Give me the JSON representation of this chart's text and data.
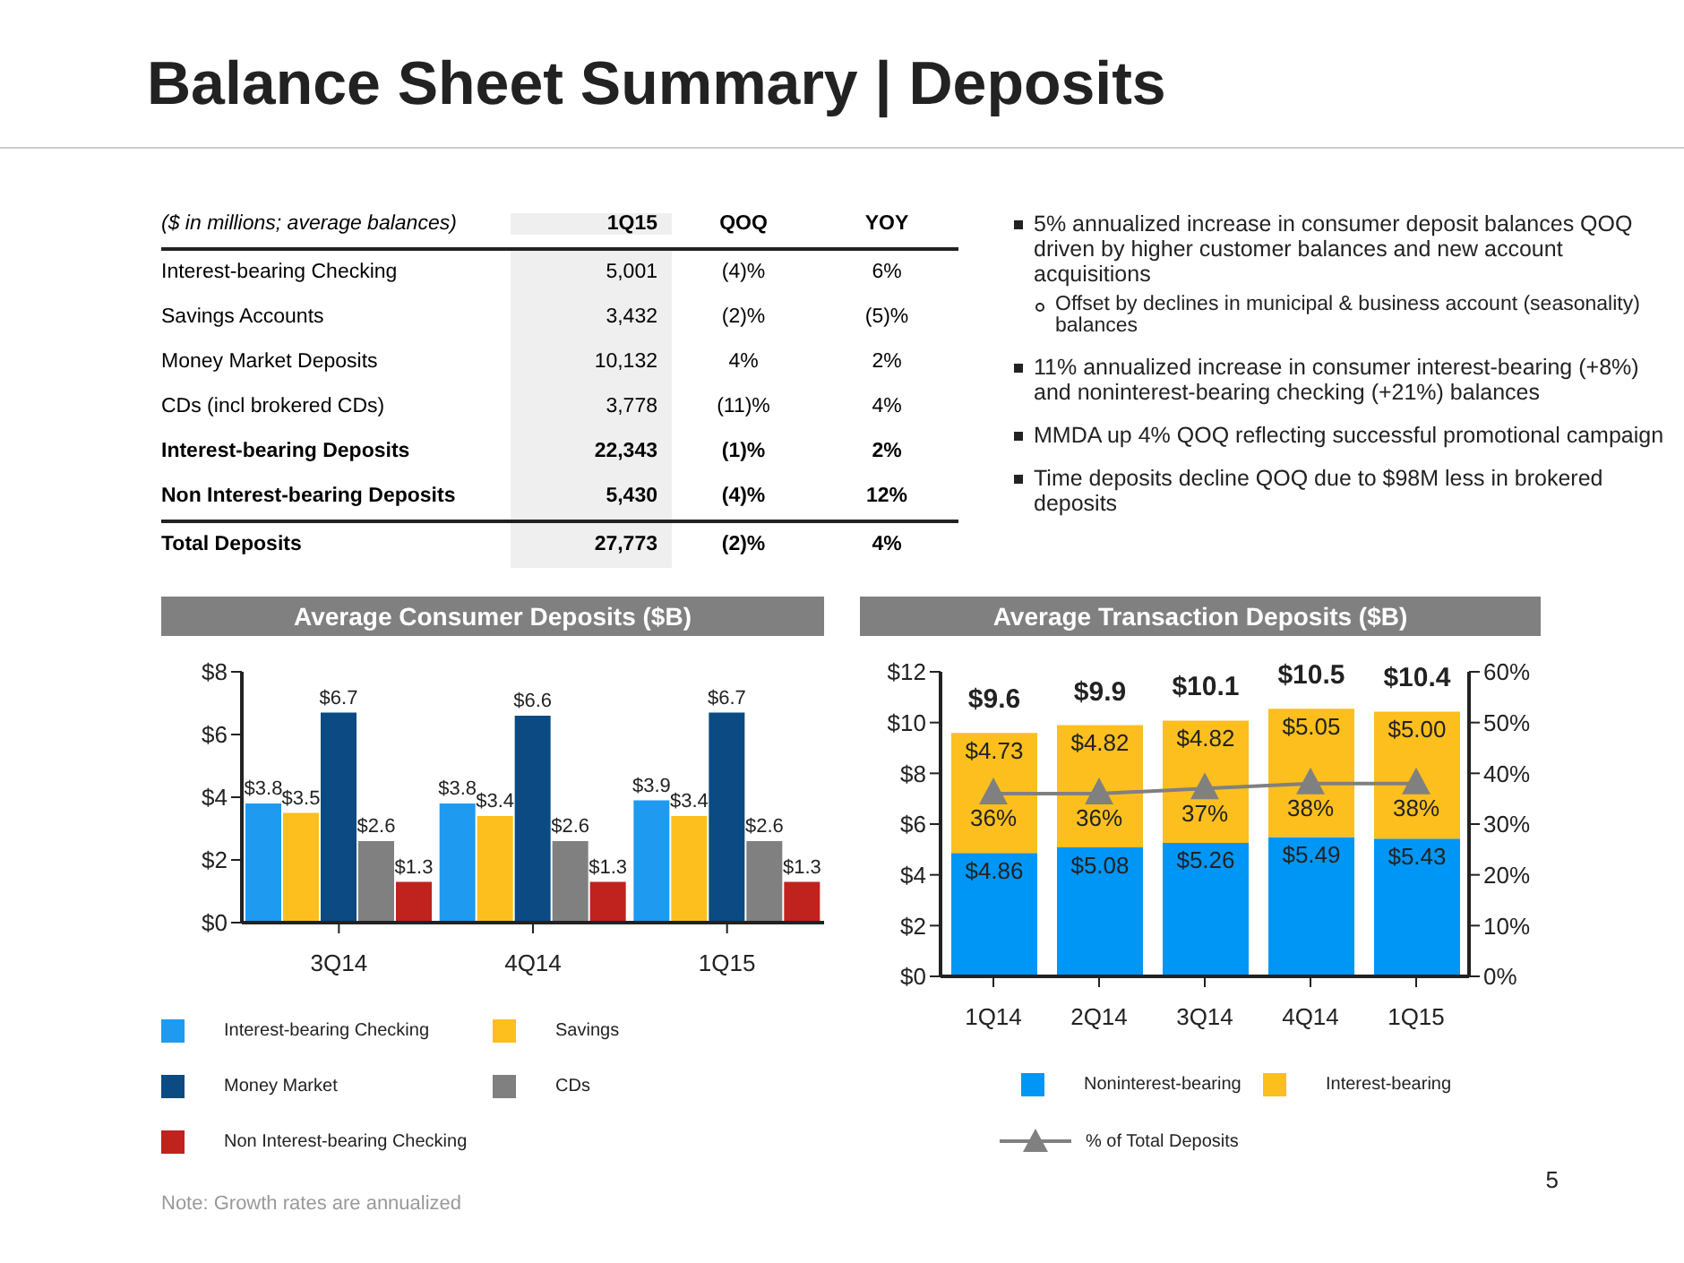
{
  "chart_data": [
    {
      "type": "other",
      "title": "Balance Sheet Summary | Deposits",
      "categories": [
        "($ in millions; average balances)",
        "1Q15",
        "QOQ",
        "YOY"
      ],
      "annotations": [
        "Interest-bearing Checking",
        "5,001",
        "(4)%",
        "6%",
        "Savings Accounts",
        "3,432",
        "(2)%",
        "(5)%",
        "Money Market Deposits",
        "10,132",
        "4%",
        "2%",
        "CDs (incl brokered CDs)",
        "3,778",
        "(11)%",
        "4%",
        "Interest-bearing Deposits",
        "22,343",
        "(1)%",
        "2%",
        "Non Interest-bearing Deposits",
        "5,430",
        "(4)%",
        "12%",
        "Total Deposits",
        "27,773",
        "(2)%",
        "4%"
      ]
    },
    {
      "type": "other",
      "annotations": [
        "5% annualized increase in consumer deposit balances QOQ driven by higher customer balances and new account acquisitions",
        "Offset by declines in municipal & business account (seasonality) balances",
        "11% annualized increase in consumer interest-bearing (+8%) and noninterest-bearing checking (+21%) balances",
        "MMDA up 4% QOQ reflecting successful promotional campaign",
        "Time deposits decline QOQ due to $98M less in brokered deposits"
      ]
    },
    {
      "type": "bar",
      "title": "Average Consumer Deposits ($B)",
      "categories": [
        "3Q14",
        "4Q14",
        "1Q15"
      ],
      "series": [
        {
          "name": "Interest-bearing Checking",
          "color": "#1e9bf0",
          "values": [
            3.8,
            3.8,
            3.9
          ],
          "value_labels": [
            "$3.8",
            "$3.8",
            "$3.9"
          ]
        },
        {
          "name": "Savings",
          "color": "#fcbf1e",
          "values": [
            3.5,
            3.4,
            3.4
          ],
          "value_labels": [
            "$3.5",
            "$3.4",
            "$3.4"
          ]
        },
        {
          "name": "Money Market",
          "color": "#0b4a82",
          "values": [
            6.7,
            6.6,
            6.7
          ],
          "value_labels": [
            "$6.7",
            "$6.6",
            "$6.7"
          ]
        },
        {
          "name": "CDs",
          "color": "#808080",
          "values": [
            2.6,
            2.6,
            2.6
          ],
          "value_labels": [
            "$2.6",
            "$2.6",
            "$2.6"
          ]
        },
        {
          "name": "Non Interest-bearing Checking",
          "color": "#c0221e",
          "values": [
            1.3,
            1.3,
            1.3
          ],
          "value_labels": [
            "$1.3",
            "$1.3",
            "$1.3"
          ]
        }
      ],
      "ylim": [
        0,
        8
      ],
      "yticks": [
        {
          "value": 0,
          "label": "$0"
        },
        {
          "value": 2,
          "label": "$2"
        },
        {
          "value": 4,
          "label": "$4"
        },
        {
          "value": 6,
          "label": "$6"
        },
        {
          "value": 8,
          "label": "$8"
        }
      ],
      "legend": "bottom",
      "annotations": [
        "Note: Growth rates are annualized"
      ]
    },
    {
      "type": "bar",
      "title": "Average Transaction Deposits ($B)",
      "categories": [
        "1Q14",
        "2Q14",
        "3Q14",
        "4Q14",
        "1Q15"
      ],
      "stacked": true,
      "series": [
        {
          "name": "Noninterest-bearing",
          "color": "#0096f5",
          "values": [
            4.86,
            5.08,
            5.26,
            5.49,
            5.43
          ],
          "value_labels": [
            "$4.86",
            "$5.08",
            "$5.26",
            "$5.49",
            "$5.43"
          ]
        },
        {
          "name": "Interest-bearing",
          "color": "#fcbf1e",
          "values": [
            4.73,
            4.82,
            4.82,
            5.05,
            5.0
          ],
          "value_labels": [
            "$4.73",
            "$4.82",
            "$4.82",
            "$5.05",
            "$5.00"
          ]
        },
        {
          "name": "% of Total Deposits",
          "type": "line",
          "axis": "y2",
          "marker": "triangle",
          "color": "#808080",
          "values": [
            36,
            36,
            37,
            38,
            38
          ],
          "value_labels": [
            "36%",
            "36%",
            "37%",
            "38%",
            "38%"
          ]
        }
      ],
      "totals": [
        "$9.6",
        "$9.9",
        "$10.1",
        "$10.5",
        "$10.4"
      ],
      "ylim": [
        0,
        12
      ],
      "yticks": [
        {
          "value": 0,
          "label": "$0"
        },
        {
          "value": 2,
          "label": "$2"
        },
        {
          "value": 4,
          "label": "$4"
        },
        {
          "value": 6,
          "label": "$6"
        },
        {
          "value": 8,
          "label": "$8"
        },
        {
          "value": 10,
          "label": "$10"
        },
        {
          "value": 12,
          "label": "$12"
        }
      ],
      "y2lim": [
        0,
        60
      ],
      "y2ticks": [
        {
          "value": 0,
          "label": "0%"
        },
        {
          "value": 10,
          "label": "10%"
        },
        {
          "value": 20,
          "label": "20%"
        },
        {
          "value": 30,
          "label": "30%"
        },
        {
          "value": 40,
          "label": "40%"
        },
        {
          "value": 50,
          "label": "50%"
        },
        {
          "value": 60,
          "label": "60%"
        }
      ],
      "legend": "bottom",
      "annotations": [
        "5"
      ]
    }
  ]
}
